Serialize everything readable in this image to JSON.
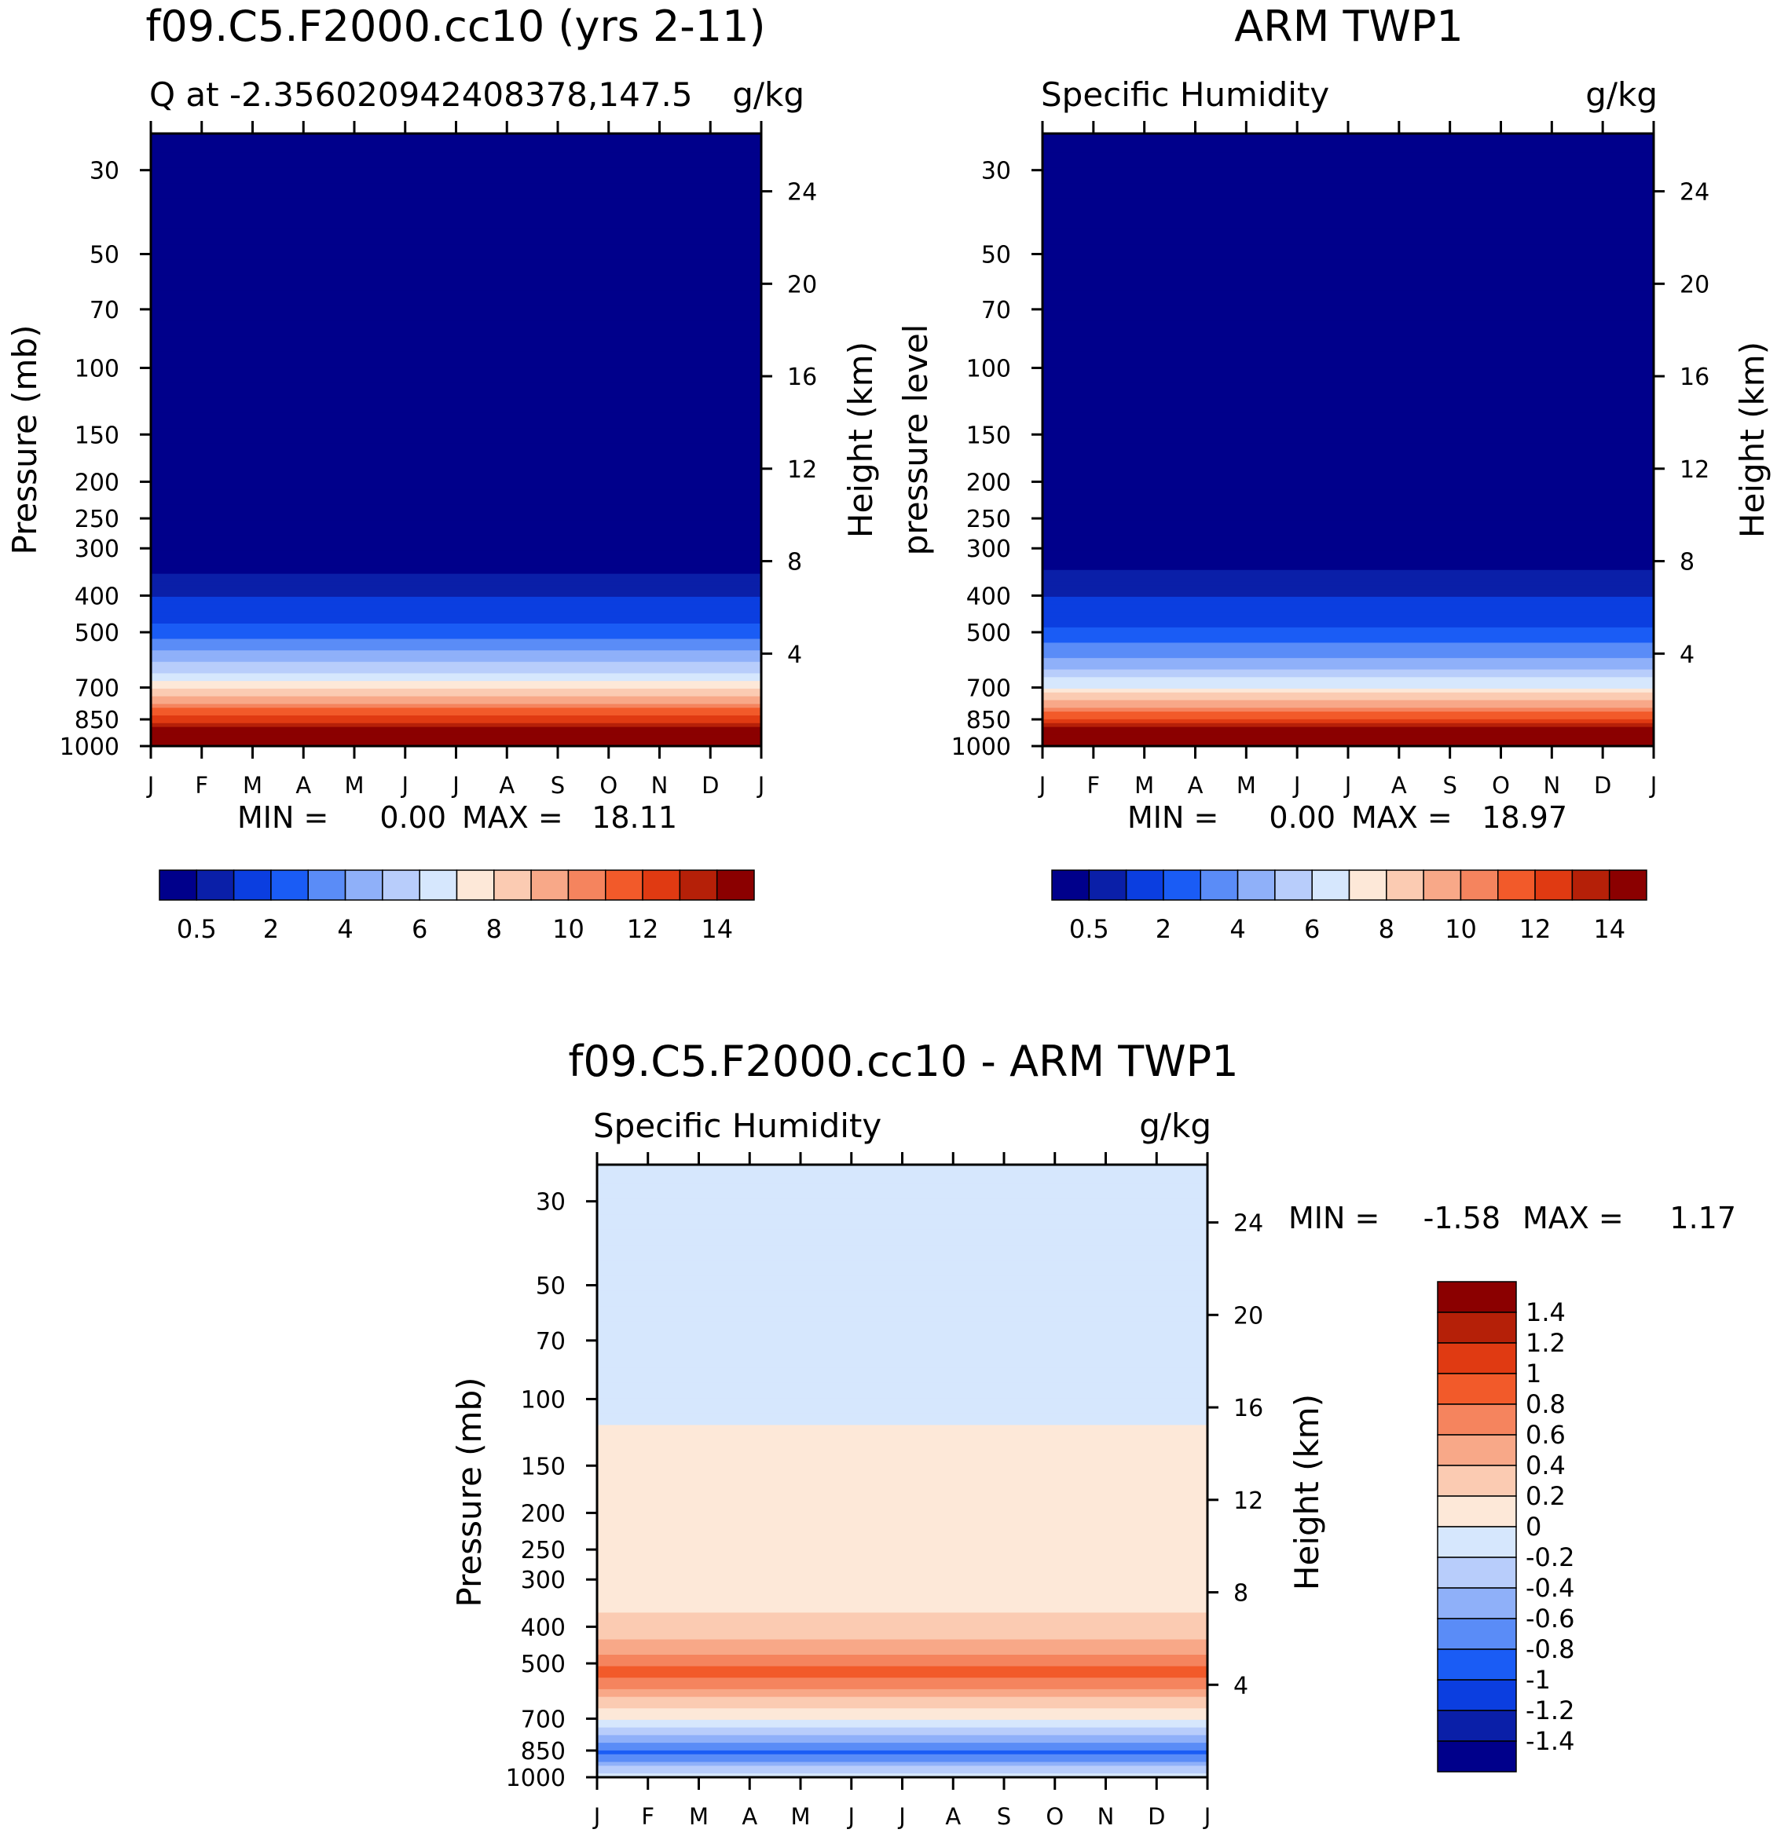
{
  "chart_data": [
    {
      "type": "heatmap",
      "panel": "model",
      "title": "f09.C5.F2000.cc10 (yrs 2-11)",
      "subtitle_left": "Q at -2.356020942408378,147.5",
      "subtitle_right": "g/kg",
      "ylabel": "Pressure (mb)",
      "ylabel_right": "Height (km)",
      "x_ticks": [
        "J",
        "F",
        "M",
        "A",
        "M",
        "J",
        "J",
        "A",
        "S",
        "O",
        "N",
        "D",
        "J"
      ],
      "y_ticks": [
        30,
        50,
        70,
        100,
        150,
        200,
        250,
        300,
        400,
        500,
        700,
        850,
        1000
      ],
      "height_ticks": [
        24,
        20,
        16,
        12,
        8,
        4
      ],
      "stats": {
        "min_label": "MIN =",
        "min": "0.00",
        "max_label": "MAX =",
        "max": "18.11"
      },
      "colorbar_labels": [
        "0.5",
        "2",
        "4",
        "6",
        "8",
        "10",
        "12",
        "14"
      ],
      "colorbar_colors": [
        "#00008b",
        "#0a1fa8",
        "#0b3ee0",
        "#1a5cf5",
        "#5a8cf7",
        "#8fb0f9",
        "#b8cdfb",
        "#d6e7fd",
        "#fde8d8",
        "#fbcbb2",
        "#f8a888",
        "#f5845e",
        "#f25a2a",
        "#e03a12",
        "#b52008",
        "#8b0000"
      ],
      "profile": [
        {
          "p": 30,
          "q": 0.0
        },
        {
          "p": 300,
          "q": 0.05
        },
        {
          "p": 400,
          "q": 0.9
        },
        {
          "p": 500,
          "q": 2.3
        },
        {
          "p": 600,
          "q": 5.0
        },
        {
          "p": 700,
          "q": 7.6
        },
        {
          "p": 850,
          "q": 12.5
        },
        {
          "p": 1000,
          "q": 17.5
        }
      ]
    },
    {
      "type": "heatmap",
      "panel": "obs",
      "title": "ARM TWP1",
      "subtitle_left": "Specific Humidity",
      "subtitle_right": "g/kg",
      "ylabel": "pressure level",
      "ylabel_right": "Height (km)",
      "x_ticks": [
        "J",
        "F",
        "M",
        "A",
        "M",
        "J",
        "J",
        "A",
        "S",
        "O",
        "N",
        "D",
        "J"
      ],
      "y_ticks": [
        30,
        50,
        70,
        100,
        150,
        200,
        250,
        300,
        400,
        500,
        700,
        850,
        1000
      ],
      "height_ticks": [
        24,
        20,
        16,
        12,
        8,
        4
      ],
      "stats": {
        "min_label": "MIN =",
        "min": "0.00",
        "max_label": "MAX =",
        "max": "18.97"
      },
      "colorbar_labels": [
        "0.5",
        "2",
        "4",
        "6",
        "8",
        "10",
        "12",
        "14"
      ],
      "colorbar_colors": [
        "#00008b",
        "#0a1fa8",
        "#0b3ee0",
        "#1a5cf5",
        "#5a8cf7",
        "#8fb0f9",
        "#b8cdfb",
        "#d6e7fd",
        "#fde8d8",
        "#fbcbb2",
        "#f8a888",
        "#f5845e",
        "#f25a2a",
        "#e03a12",
        "#b52008",
        "#8b0000"
      ],
      "profile": [
        {
          "p": 30,
          "q": 0.0
        },
        {
          "p": 300,
          "q": 0.05
        },
        {
          "p": 400,
          "q": 1.0
        },
        {
          "p": 500,
          "q": 2.2
        },
        {
          "p": 600,
          "q": 4.3
        },
        {
          "p": 700,
          "q": 7.0
        },
        {
          "p": 850,
          "q": 12.0
        },
        {
          "p": 1000,
          "q": 18.2
        }
      ]
    },
    {
      "type": "heatmap",
      "panel": "difference",
      "title": "f09.C5.F2000.cc10 - ARM TWP1",
      "subtitle_left": "Specific Humidity",
      "subtitle_right": "g/kg",
      "ylabel": "Pressure (mb)",
      "ylabel_right": "Height (km)",
      "x_ticks": [
        "J",
        "F",
        "M",
        "A",
        "M",
        "J",
        "J",
        "A",
        "S",
        "O",
        "N",
        "D",
        "J"
      ],
      "y_ticks": [
        30,
        50,
        70,
        100,
        150,
        200,
        250,
        300,
        400,
        500,
        700,
        850,
        1000
      ],
      "height_ticks": [
        24,
        20,
        16,
        12,
        8,
        4
      ],
      "stats": {
        "min_label": "MIN =",
        "min": "-1.58",
        "max_label": "MAX =",
        "max": "1.17"
      },
      "colorbar_labels": [
        "1.4",
        "1.2",
        "1",
        "0.8",
        "0.6",
        "0.4",
        "0.2",
        "0",
        "-0.2",
        "-0.4",
        "-0.6",
        "-0.8",
        "-1",
        "-1.2",
        "-1.4"
      ],
      "colorbar_colors": [
        "#8b0000",
        "#b52008",
        "#e03a12",
        "#f25a2a",
        "#f5845e",
        "#f8a888",
        "#fbcbb2",
        "#fde8d8",
        "#d6e7fd",
        "#b8cdfb",
        "#8fb0f9",
        "#5a8cf7",
        "#1a5cf5",
        "#0b3ee0",
        "#0a1fa8",
        "#00008b"
      ],
      "profile": [
        {
          "p": 30,
          "q": -0.1
        },
        {
          "p": 110,
          "q": -0.1
        },
        {
          "p": 125,
          "q": 0.1
        },
        {
          "p": 300,
          "q": 0.1
        },
        {
          "p": 400,
          "q": 0.25
        },
        {
          "p": 470,
          "q": 0.6
        },
        {
          "p": 520,
          "q": 0.9
        },
        {
          "p": 580,
          "q": 0.6
        },
        {
          "p": 650,
          "q": 0.25
        },
        {
          "p": 720,
          "q": -0.1
        },
        {
          "p": 780,
          "q": -0.4
        },
        {
          "p": 860,
          "q": -0.9
        },
        {
          "p": 940,
          "q": -0.4
        },
        {
          "p": 1000,
          "q": -0.1
        }
      ]
    }
  ]
}
